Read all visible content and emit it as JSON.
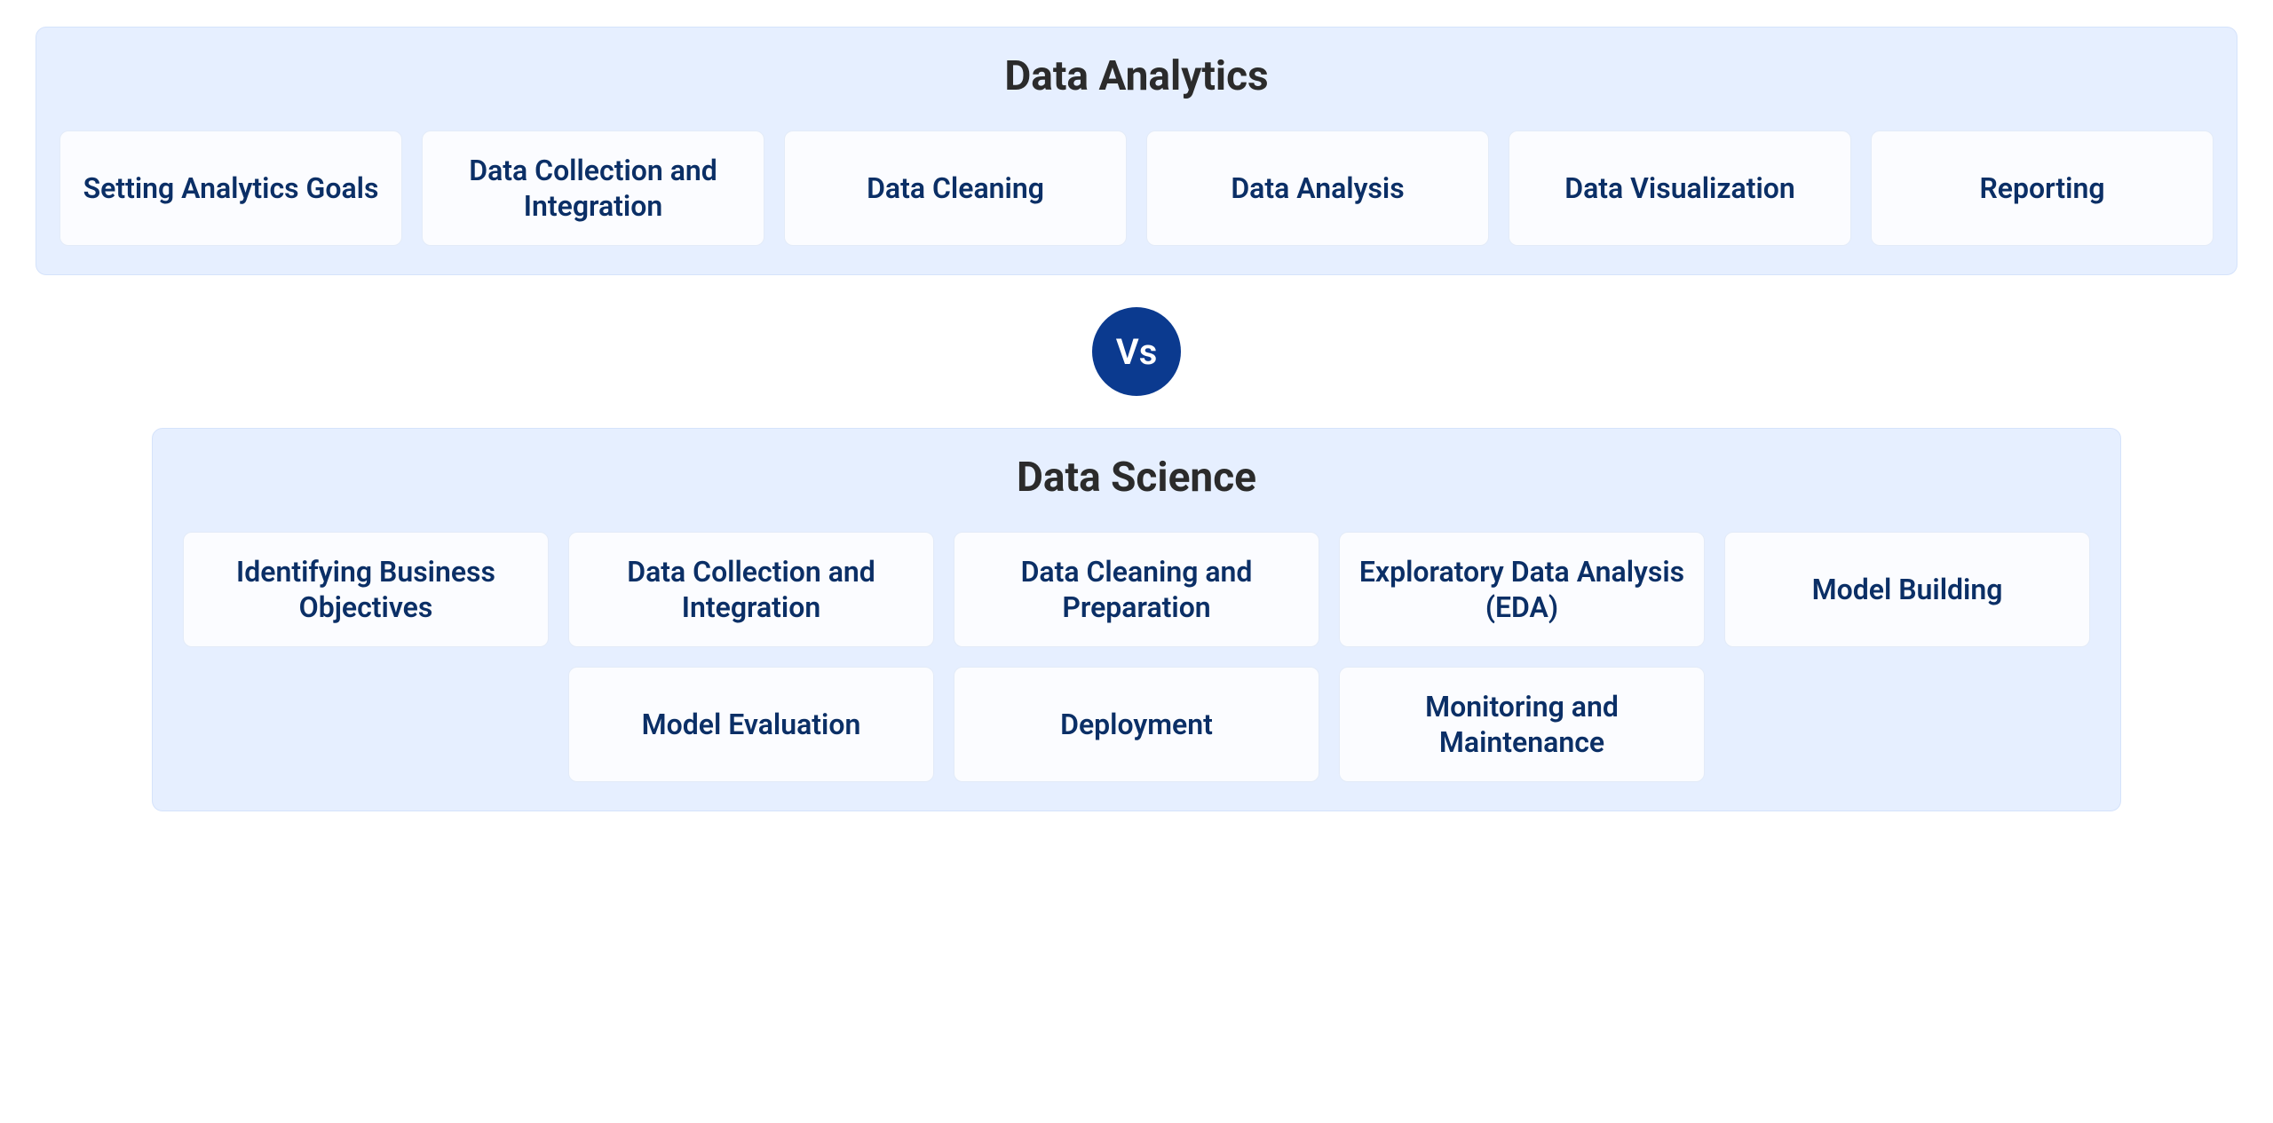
{
  "colors": {
    "page_bg": "#ffffff",
    "panel_bg": "#e6efff",
    "panel_border": "#d5e3fb",
    "card_bg": "#fbfcff",
    "card_border": "#e3ebf8",
    "title_color": "#2b2b2b",
    "card_text": "#0b2f66",
    "vs_bg": "#0b3a8f",
    "vs_text": "#ffffff"
  },
  "layout": {
    "top_card_width": 386,
    "top_card_height": 130,
    "bottom_card_width": 412,
    "bottom_card_height": 130,
    "card_gap": 22,
    "vs_diameter": 100,
    "panel_radius": 12,
    "card_radius": 10,
    "title_fontsize": 46,
    "card_fontsize": 32
  },
  "vs_label": "Vs",
  "top": {
    "title": "Data Analytics",
    "cards": [
      "Setting Analytics Goals",
      "Data Collection and Integration",
      "Data Cleaning",
      "Data Analysis",
      "Data Visualization",
      "Reporting"
    ]
  },
  "bottom": {
    "title": "Data Science",
    "row1": [
      "Identifying Business Objectives",
      "Data Collection and Integration",
      "Data Cleaning and Preparation",
      "Exploratory Data Analysis (EDA)",
      "Model Building"
    ],
    "row2": [
      "Model Evaluation",
      "Deployment",
      "Monitoring and Maintenance"
    ]
  }
}
